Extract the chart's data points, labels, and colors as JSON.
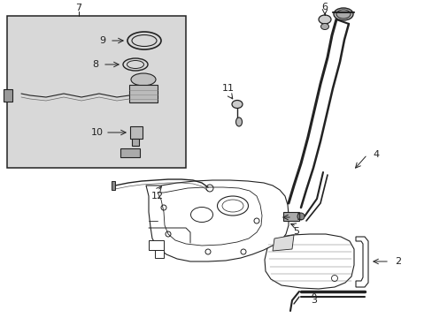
{
  "bg_color": "#ffffff",
  "lc": "#222222",
  "box_bg": "#d8d8d8",
  "fs": 8,
  "figw": 4.89,
  "figh": 3.6,
  "dpi": 100
}
